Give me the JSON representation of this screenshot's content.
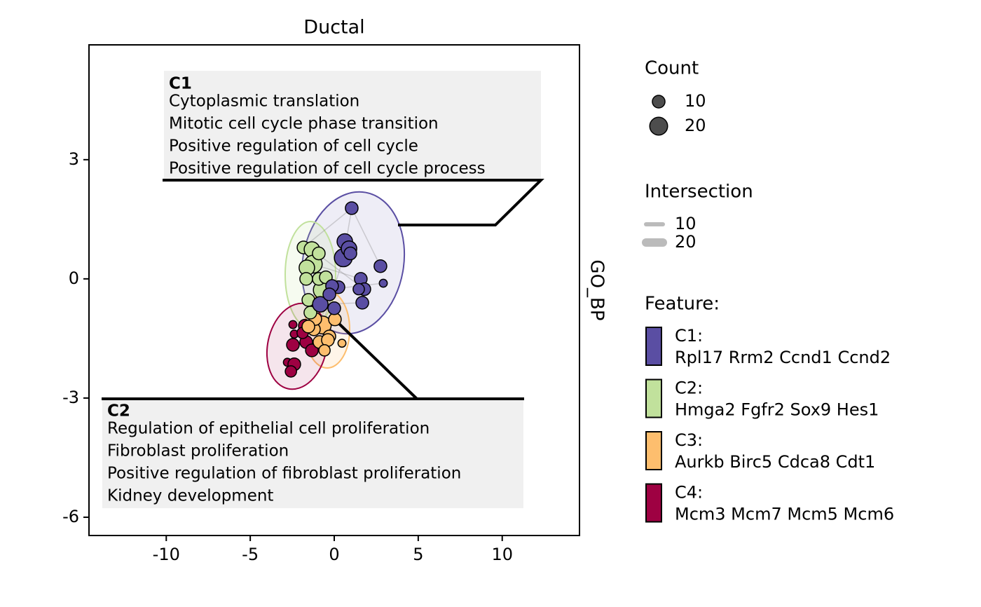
{
  "chart_data": {
    "type": "scatter",
    "title": "Ductal",
    "facet_label": "GO_BP",
    "xlim": [
      -14.6,
      14.6
    ],
    "ylim": [
      -6.46,
      5.89
    ],
    "xticks": [
      -10,
      -5,
      0,
      5,
      10
    ],
    "yticks": [
      3,
      0,
      -3,
      -6
    ],
    "series": [
      {
        "name": "C1:",
        "genes": "Rpl17 Rrm2 Ccnd1 Ccnd2",
        "color": "#5a4ea3",
        "x": [
          1.04,
          0.54,
          0.63,
          0.88,
          0.96,
          2.75,
          2.92,
          1.58,
          1.79,
          1.46,
          1.67,
          0.25,
          -0.13,
          0,
          -0.83,
          -0.29
        ],
        "y": [
          1.78,
          0.53,
          0.94,
          0.76,
          0.64,
          0.32,
          -0.11,
          0,
          -0.26,
          -0.26,
          -0.6,
          -0.21,
          -0.18,
          -0.74,
          -0.64,
          -0.39
        ],
        "size": [
          10,
          20,
          15,
          15,
          10,
          10,
          4,
          10,
          10,
          8,
          10,
          10,
          10,
          10,
          15,
          10
        ]
      },
      {
        "name": "C2:",
        "genes": "Hmga2 Fgfr2 Sox9 Hes1",
        "color": "#c1e19c",
        "x": [
          -1.83,
          -1.33,
          -1.25,
          -1.63,
          -1.67,
          -0.92,
          -0.71,
          -0.92,
          -1.54,
          -1.42,
          -0.5
        ],
        "y": [
          0.79,
          0.74,
          0.37,
          0.28,
          0,
          0.64,
          -0.28,
          0,
          -0.53,
          -0.85,
          0.04
        ],
        "size": [
          10,
          15,
          20,
          15,
          10,
          10,
          20,
          10,
          10,
          10,
          10
        ]
      },
      {
        "name": "C3:",
        "genes": "Aurkb Birc5 Cdca8 Cdt1",
        "color": "#fdbe6e",
        "x": [
          -0.71,
          -0.29,
          -0.88,
          -0.38,
          -1.21,
          0.04,
          0.46,
          -0.58,
          -1.13,
          -1.54
        ],
        "y": [
          -1.16,
          -1.45,
          -1.59,
          -1.54,
          -1.27,
          -1.02,
          -1.62,
          -1.8,
          -1.01,
          -1.2
        ],
        "size": [
          20,
          10,
          10,
          10,
          10,
          10,
          4,
          8,
          10,
          10
        ]
      },
      {
        "name": "C4:",
        "genes": "Mcm3 Mcm7 Mcm5 Mcm6",
        "color": "#9e0142",
        "x": [
          -2.46,
          -2.38,
          -2.46,
          -2.79,
          -2.38,
          -2.58,
          -1.75,
          -1.67,
          -1.33,
          -1.88
        ],
        "y": [
          -1.15,
          -1.39,
          -1.66,
          -2.1,
          -2.15,
          -2.33,
          -1.18,
          -1.59,
          -1.8,
          -1.36
        ],
        "size": [
          4,
          4,
          10,
          4,
          10,
          8,
          10,
          10,
          10,
          8
        ]
      }
    ],
    "annotations": [
      {
        "label": "C1",
        "terms": [
          "Cytoplasmic translation",
          "Mitotic cell cycle phase transition",
          "Positive regulation of cell cycle",
          "Positive regulation of cell cycle process"
        ]
      },
      {
        "label": "C2",
        "terms": [
          "Regulation of epithelial cell proliferation",
          "Fibroblast proliferation",
          "Positive regulation of fibroblast proliferation",
          "Kidney development"
        ]
      }
    ],
    "size_legend": {
      "title": "Count",
      "values": [
        10,
        20
      ]
    },
    "intersection_legend": {
      "title": "Intersection",
      "values": [
        10,
        20
      ]
    },
    "feature_legend_title": "Feature:"
  }
}
